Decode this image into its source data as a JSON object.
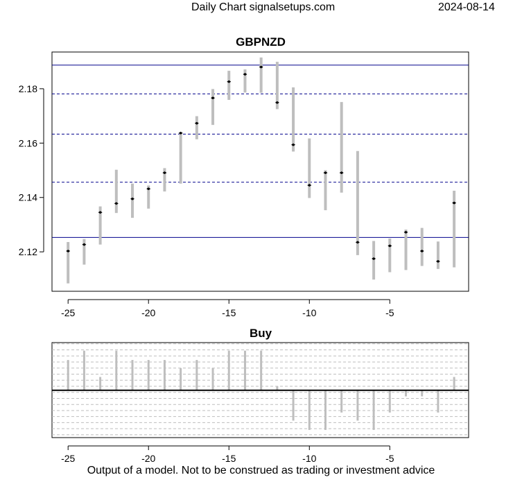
{
  "header": {
    "left": "Daily Chart signalsetups.com",
    "right": "2024-08-14"
  },
  "footer": "Output of a model. Not to be construed as trading or investment advice",
  "chart_data": [
    {
      "type": "range-bar",
      "title": "GBPNZD",
      "xlim": [
        -26,
        -0.1
      ],
      "ylim": [
        2.1055,
        2.1935
      ],
      "x_ticks": [
        -25,
        -20,
        -15,
        -10,
        -5
      ],
      "y_ticks": [
        2.12,
        2.14,
        2.16,
        2.18
      ],
      "colors": {
        "bar": "#bebebe",
        "level": "#00008b",
        "close_marker": "#000000"
      },
      "reference_lines": {
        "solid": [
          2.1887,
          2.1253
        ],
        "dashed": [
          2.1781,
          2.1633,
          2.1456
        ]
      },
      "bars": [
        {
          "x": -25,
          "low": 2.1084,
          "high": 2.1236,
          "close": 2.1203
        },
        {
          "x": -24,
          "low": 2.1153,
          "high": 2.1247,
          "close": 2.1227
        },
        {
          "x": -23,
          "low": 2.1227,
          "high": 2.1367,
          "close": 2.1345
        },
        {
          "x": -22,
          "low": 2.1343,
          "high": 2.1502,
          "close": 2.1378
        },
        {
          "x": -21,
          "low": 2.1325,
          "high": 2.1451,
          "close": 2.1395
        },
        {
          "x": -20,
          "low": 2.1359,
          "high": 2.1444,
          "close": 2.1432
        },
        {
          "x": -19,
          "low": 2.1422,
          "high": 2.1508,
          "close": 2.1491
        },
        {
          "x": -18,
          "low": 2.1451,
          "high": 2.164,
          "close": 2.1637
        },
        {
          "x": -17,
          "low": 2.1614,
          "high": 2.1699,
          "close": 2.1673
        },
        {
          "x": -16,
          "low": 2.1667,
          "high": 2.1799,
          "close": 2.1766
        },
        {
          "x": -15,
          "low": 2.1759,
          "high": 2.1866,
          "close": 2.1826
        },
        {
          "x": -14,
          "low": 2.1786,
          "high": 2.1871,
          "close": 2.1853
        },
        {
          "x": -13,
          "low": 2.1785,
          "high": 2.1915,
          "close": 2.188
        },
        {
          "x": -12,
          "low": 2.1725,
          "high": 2.1899,
          "close": 2.1749
        },
        {
          "x": -11,
          "low": 2.1569,
          "high": 2.1805,
          "close": 2.1594
        },
        {
          "x": -10,
          "low": 2.1398,
          "high": 2.1617,
          "close": 2.1445
        },
        {
          "x": -9,
          "low": 2.1353,
          "high": 2.15,
          "close": 2.1491
        },
        {
          "x": -8,
          "low": 2.1418,
          "high": 2.1751,
          "close": 2.1491
        },
        {
          "x": -7,
          "low": 2.1188,
          "high": 2.1571,
          "close": 2.1235
        },
        {
          "x": -6,
          "low": 2.1098,
          "high": 2.124,
          "close": 2.1175
        },
        {
          "x": -5,
          "low": 2.1125,
          "high": 2.1249,
          "close": 2.1222
        },
        {
          "x": -4,
          "low": 2.1133,
          "high": 2.1282,
          "close": 2.1272
        },
        {
          "x": -3,
          "low": 2.1148,
          "high": 2.1288,
          "close": 2.1203
        },
        {
          "x": -2,
          "low": 2.1137,
          "high": 2.1238,
          "close": 2.1165
        },
        {
          "x": -1,
          "low": 2.1143,
          "high": 2.1425,
          "close": 2.138
        }
      ]
    },
    {
      "type": "bar",
      "title": "Buy",
      "xlim": [
        -26,
        -0.1
      ],
      "ylim": [
        -1.17,
        1.18
      ],
      "x_ticks": [
        -25,
        -20,
        -15,
        -10,
        -5
      ],
      "colors": {
        "bar": "#bebebe",
        "zero_line": "#000000",
        "grid": "#bebebe"
      },
      "grid_levels": [
        -1.1,
        -0.95,
        -0.8,
        -0.65,
        -0.5,
        -0.35,
        -0.2,
        -0.05,
        0.1,
        0.25,
        0.4,
        0.55,
        0.7,
        0.85,
        1.0,
        1.15
      ],
      "x": [
        -25,
        -24,
        -23,
        -22,
        -21,
        -20,
        -19,
        -18,
        -17,
        -16,
        -15,
        -14,
        -13,
        -12,
        -11,
        -10,
        -9,
        -8,
        -7,
        -6,
        -5,
        -4,
        -3,
        -2,
        -1
      ],
      "values": [
        0.75,
        0.98,
        0.33,
        0.98,
        0.75,
        0.75,
        0.75,
        0.55,
        0.75,
        0.55,
        0.98,
        0.98,
        0.98,
        0.1,
        -0.75,
        -0.98,
        -0.98,
        -0.55,
        -0.75,
        -0.98,
        -0.55,
        -0.15,
        -0.15,
        -0.55,
        0.33
      ]
    }
  ]
}
